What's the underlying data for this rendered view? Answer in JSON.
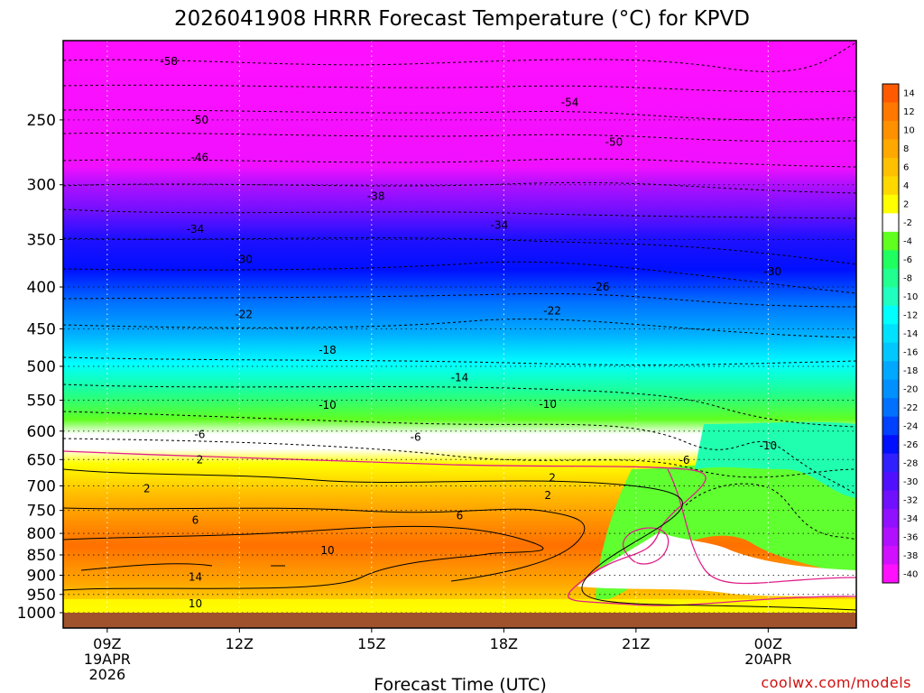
{
  "chart_data": {
    "type": "time-height contour (filled)",
    "title": "2026041908 HRRR Forecast Temperature (°C) for KPVD",
    "xlabel": "Forecast Time (UTC)",
    "ylabel": "",
    "credit": "coolwx.com/models",
    "x_ticks": [
      {
        "hour": 9,
        "lines": [
          "09Z",
          "19APR",
          "2026"
        ]
      },
      {
        "hour": 12,
        "lines": [
          "12Z"
        ]
      },
      {
        "hour": 15,
        "lines": [
          "15Z"
        ]
      },
      {
        "hour": 18,
        "lines": [
          "18Z"
        ]
      },
      {
        "hour": 21,
        "lines": [
          "21Z"
        ]
      },
      {
        "hour": 24,
        "lines": [
          "00Z",
          "20APR"
        ]
      }
    ],
    "xlim_hours": [
      8,
      26
    ],
    "y_axis": {
      "scale": "log",
      "direction": "inverted",
      "units": "hPa",
      "range": [
        1000,
        200
      ]
    },
    "y_ticks": [
      250,
      300,
      350,
      400,
      450,
      500,
      550,
      600,
      650,
      700,
      750,
      800,
      850,
      900,
      950,
      1000
    ],
    "surface_band_hPa": 1000,
    "colorbar": {
      "labels": [
        14,
        12,
        10,
        8,
        6,
        4,
        2,
        -2,
        -4,
        -6,
        -8,
        -10,
        -12,
        -14,
        -16,
        -18,
        -20,
        -22,
        -24,
        -26,
        -28,
        -30,
        -32,
        -34,
        -36,
        -38,
        -40
      ],
      "colors": [
        "#ff5a00",
        "#ff7800",
        "#ff9000",
        "#ffa800",
        "#ffc000",
        "#ffd800",
        "#ffff00",
        "#ffffff",
        "#60ff20",
        "#20ff60",
        "#20ff90",
        "#20ffc0",
        "#00ffff",
        "#00e0ff",
        "#00c8ff",
        "#00a8ff",
        "#0090ff",
        "#0070ff",
        "#0040ff",
        "#0010ff",
        "#3020ff",
        "#5010ff",
        "#7010ff",
        "#9010ff",
        "#b010ff",
        "#d010ff",
        "#ff10ff"
      ]
    },
    "contour_labels": [
      {
        "text": "-58",
        "hour": 10.4,
        "hPa": 212
      },
      {
        "text": "-54",
        "hour": 19.5,
        "hPa": 238
      },
      {
        "text": "-50",
        "hour": 11.1,
        "hPa": 250
      },
      {
        "text": "-50",
        "hour": 20.5,
        "hPa": 266
      },
      {
        "text": "-46",
        "hour": 11.1,
        "hPa": 278
      },
      {
        "text": "-38",
        "hour": 15.1,
        "hPa": 310
      },
      {
        "text": "-34",
        "hour": 11.0,
        "hPa": 340
      },
      {
        "text": "-34",
        "hour": 17.9,
        "hPa": 336
      },
      {
        "text": "-30",
        "hour": 12.1,
        "hPa": 370
      },
      {
        "text": "-30",
        "hour": 24.1,
        "hPa": 383
      },
      {
        "text": "-26",
        "hour": 20.2,
        "hPa": 400
      },
      {
        "text": "-22",
        "hour": 12.1,
        "hPa": 432
      },
      {
        "text": "-22",
        "hour": 19.1,
        "hPa": 428
      },
      {
        "text": "-18",
        "hour": 14.0,
        "hPa": 478
      },
      {
        "text": "-14",
        "hour": 17.0,
        "hPa": 516
      },
      {
        "text": "-10",
        "hour": 14.0,
        "hPa": 558
      },
      {
        "text": "-10",
        "hour": 19.0,
        "hPa": 556
      },
      {
        "text": "-10",
        "hour": 24.0,
        "hPa": 625
      },
      {
        "text": "-6",
        "hour": 11.1,
        "hPa": 606
      },
      {
        "text": "-6",
        "hour": 16.0,
        "hPa": 610
      },
      {
        "text": "-6",
        "hour": 22.1,
        "hPa": 651
      },
      {
        "text": "2",
        "hour": 11.1,
        "hPa": 650
      },
      {
        "text": "2",
        "hour": 19.1,
        "hPa": 684
      },
      {
        "text": "2",
        "hour": 9.9,
        "hPa": 705
      },
      {
        "text": "2",
        "hour": 19.0,
        "hPa": 719
      },
      {
        "text": "6",
        "hour": 17.0,
        "hPa": 761
      },
      {
        "text": "6",
        "hour": 11.0,
        "hPa": 771
      },
      {
        "text": "10",
        "hour": 14.0,
        "hPa": 839
      },
      {
        "text": "14",
        "hour": 11.0,
        "hPa": 905
      },
      {
        "text": "10",
        "hour": 11.0,
        "hPa": 975
      }
    ]
  }
}
